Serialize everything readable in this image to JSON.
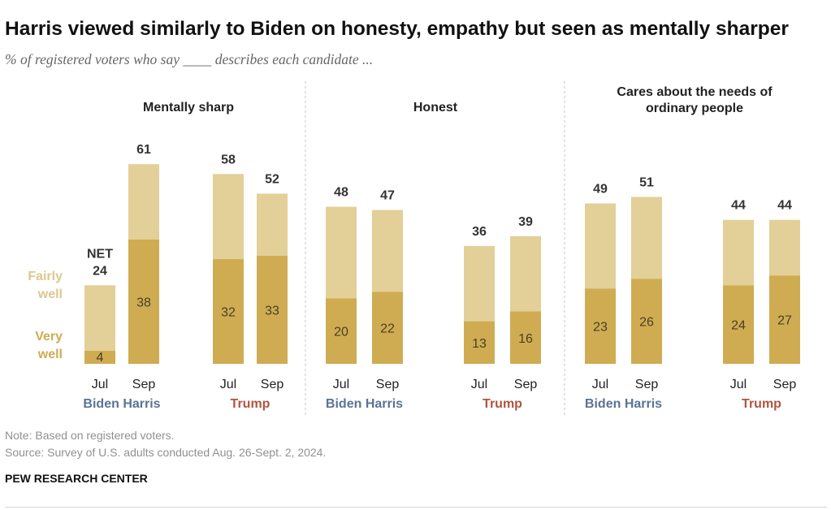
{
  "title": "Harris viewed similarly to Biden on honesty, empathy but seen as mentally sharper",
  "subtitle": "% of registered voters who say ____ describes each candidate ...",
  "note": "Note: Based on registered voters.",
  "source": "Source: Survey of U.S. adults conducted Aug. 26-Sept. 2, 2024.",
  "brand": "PEW RESEARCH CENTER",
  "colors": {
    "fairly_well": "#e3cf98",
    "very_well": "#cfac52",
    "democrat_label": "#5b7394",
    "republican_label": "#b1543f",
    "net_label": "#333333",
    "legend_label": "#dcc88e"
  },
  "legend": {
    "fairly_well": [
      "Fairly",
      "well"
    ],
    "very_well": [
      "Very",
      "well"
    ],
    "net": "NET"
  },
  "chart_data": {
    "type": "bar",
    "stacked": true,
    "ylim": [
      0,
      100
    ],
    "series_names": [
      "Very well",
      "Fairly well"
    ],
    "panels": [
      {
        "title": [
          "Mentally sharp"
        ],
        "groups": [
          {
            "label": "Biden Harris",
            "party": "democrat",
            "bars": [
              {
                "period": "Jul",
                "very_well": 4,
                "net": 24
              },
              {
                "period": "Sep",
                "very_well": 38,
                "net": 61
              }
            ]
          },
          {
            "label": "Trump",
            "party": "republican",
            "bars": [
              {
                "period": "Jul",
                "very_well": 32,
                "net": 58
              },
              {
                "period": "Sep",
                "very_well": 33,
                "net": 52
              }
            ]
          }
        ]
      },
      {
        "title": [
          "Honest"
        ],
        "groups": [
          {
            "label": "Biden Harris",
            "party": "democrat",
            "bars": [
              {
                "period": "Jul",
                "very_well": 20,
                "net": 48
              },
              {
                "period": "Sep",
                "very_well": 22,
                "net": 47
              }
            ]
          },
          {
            "label": "Trump",
            "party": "republican",
            "bars": [
              {
                "period": "Jul",
                "very_well": 13,
                "net": 36
              },
              {
                "period": "Sep",
                "very_well": 16,
                "net": 39
              }
            ]
          }
        ]
      },
      {
        "title": [
          "Cares about the needs of",
          "ordinary people"
        ],
        "groups": [
          {
            "label": "Biden Harris",
            "party": "democrat",
            "bars": [
              {
                "period": "Jul",
                "very_well": 23,
                "net": 49
              },
              {
                "period": "Sep",
                "very_well": 26,
                "net": 51
              }
            ]
          },
          {
            "label": "Trump",
            "party": "republican",
            "bars": [
              {
                "period": "Jul",
                "very_well": 24,
                "net": 44
              },
              {
                "period": "Sep",
                "very_well": 27,
                "net": 44
              }
            ]
          }
        ]
      }
    ]
  }
}
